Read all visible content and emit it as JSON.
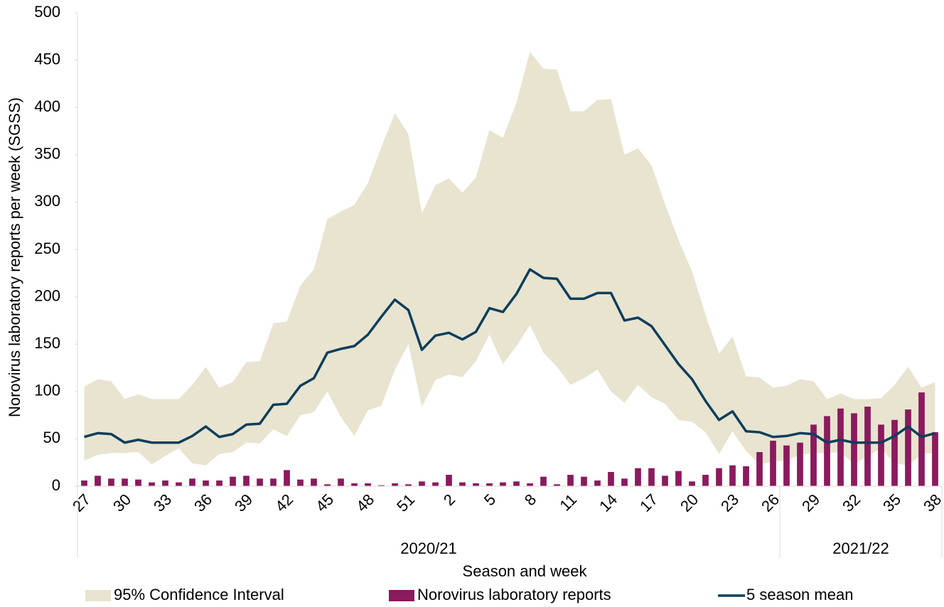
{
  "chart_data": {
    "type": "combo",
    "y_axis_label": "Norovirus laboratory reports per week (SGSS)",
    "x_axis_label": "Season and week",
    "categories": [
      "27",
      null,
      null,
      "30",
      null,
      null,
      "33",
      null,
      null,
      "36",
      null,
      null,
      "39",
      null,
      null,
      "42",
      null,
      null,
      "45",
      null,
      null,
      "48",
      null,
      null,
      "51",
      null,
      null,
      "2",
      null,
      null,
      "5",
      null,
      null,
      "8",
      null,
      null,
      "11",
      null,
      null,
      "14",
      null,
      null,
      "17",
      null,
      null,
      "20",
      null,
      null,
      "23",
      null,
      null,
      "26",
      null,
      null,
      "29",
      null,
      null,
      "32",
      null,
      null,
      "35",
      null,
      null,
      "38"
    ],
    "groups": [
      {
        "label": "2020/21",
        "count": 52
      },
      {
        "label": "2021/22",
        "count": 12
      }
    ],
    "series": [
      {
        "name": "95% Confidence Interval",
        "type": "band",
        "color": "#e8e4d0",
        "upper": [
          105,
          113,
          111,
          92,
          97,
          92,
          92,
          92,
          107,
          126,
          104,
          110,
          131,
          132,
          172,
          174,
          212,
          229,
          282,
          290,
          297,
          320,
          358,
          394,
          372,
          288,
          318,
          325,
          310,
          326,
          376,
          368,
          405,
          459,
          441,
          440,
          396,
          396,
          408,
          409,
          350,
          357,
          339,
          298,
          260,
          227,
          181,
          140,
          158,
          116,
          115,
          104,
          106,
          113,
          111,
          92,
          98,
          92,
          92,
          93,
          107,
          126,
          104,
          110
        ],
        "lower": [
          27,
          33,
          35,
          35,
          36,
          23,
          32,
          40,
          24,
          22,
          34,
          36,
          46,
          45,
          60,
          53,
          75,
          78,
          100,
          73,
          53,
          80,
          85,
          123,
          150,
          84,
          112,
          118,
          115,
          132,
          160,
          129,
          148,
          170,
          141,
          126,
          107,
          114,
          123,
          100,
          88,
          107,
          94,
          87,
          70,
          68,
          57,
          34,
          58,
          37,
          23,
          26,
          27,
          33,
          35,
          35,
          36,
          23,
          32,
          40,
          24,
          22,
          34,
          35
        ]
      },
      {
        "name": "Norovirus laboratory reports",
        "type": "bar",
        "color": "#8b1a5e",
        "values": [
          6,
          11,
          8,
          8,
          7,
          4,
          6,
          4,
          8,
          6,
          6,
          10,
          11,
          8,
          8,
          17,
          7,
          8,
          2,
          8,
          3,
          3,
          1,
          3,
          2,
          5,
          4,
          12,
          4,
          3,
          3,
          4,
          5,
          3,
          10,
          2,
          12,
          10,
          6,
          15,
          8,
          19,
          19,
          11,
          16,
          5,
          12,
          19,
          22,
          21,
          36,
          48,
          43,
          46,
          65,
          74,
          82,
          77,
          84,
          65,
          70,
          81,
          99,
          57
        ]
      },
      {
        "name": "5 season mean",
        "type": "line",
        "color": "#0d3e5c",
        "values": [
          52,
          56,
          55,
          46,
          49,
          46,
          46,
          46,
          53,
          63,
          52,
          55,
          65,
          66,
          86,
          87,
          106,
          114,
          141,
          145,
          148,
          160,
          179,
          197,
          186,
          144,
          159,
          162,
          155,
          163,
          188,
          184,
          203,
          229,
          220,
          219,
          198,
          198,
          204,
          204,
          175,
          178,
          169,
          149,
          129,
          113,
          90,
          70,
          79,
          58,
          57,
          52,
          53,
          56,
          55,
          46,
          49,
          46,
          46,
          46,
          53,
          63,
          52,
          56
        ]
      }
    ],
    "ylim": [
      0,
      500
    ],
    "yticks": [
      0,
      50,
      100,
      150,
      200,
      250,
      300,
      350,
      400,
      450,
      500
    ],
    "grid": false
  }
}
